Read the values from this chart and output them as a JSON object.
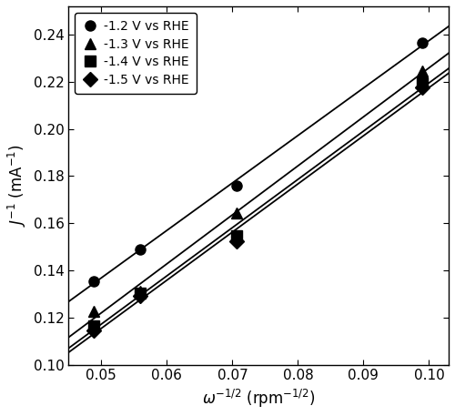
{
  "series": [
    {
      "label": "-1.2 V vs RHE",
      "marker": "o",
      "x": [
        0.0488,
        0.0559,
        0.0707,
        0.099
      ],
      "y": [
        0.1355,
        0.149,
        0.176,
        0.2365
      ]
    },
    {
      "label": "-1.3 V vs RHE",
      "marker": "^",
      "x": [
        0.0488,
        0.0559,
        0.0707,
        0.099
      ],
      "y": [
        0.1225,
        0.131,
        0.1645,
        0.2245
      ]
    },
    {
      "label": "-1.4 V vs RHE",
      "marker": "s",
      "x": [
        0.0488,
        0.0559,
        0.0707,
        0.099
      ],
      "y": [
        0.1165,
        0.1305,
        0.1545,
        0.2195
      ]
    },
    {
      "label": "-1.5 V vs RHE",
      "marker": "D",
      "x": [
        0.0488,
        0.0559,
        0.0707,
        0.099
      ],
      "y": [
        0.1145,
        0.129,
        0.1525,
        0.2175
      ]
    }
  ],
  "xlabel": "$\\omega^{-1/2}$ (rpm$^{-1/2}$)",
  "ylabel": "$J^{-1}$ (mA$^{-1}$)",
  "xlim": [
    0.045,
    0.103
  ],
  "ylim": [
    0.1,
    0.252
  ],
  "xticks": [
    0.05,
    0.06,
    0.07,
    0.08,
    0.09,
    0.1
  ],
  "yticks": [
    0.1,
    0.12,
    0.14,
    0.16,
    0.18,
    0.2,
    0.22,
    0.24
  ],
  "line_color": "#000000",
  "marker_color": "#000000",
  "markersize": 8,
  "linewidth": 1.3,
  "background_color": "#ffffff",
  "legend_loc": "upper left",
  "figsize": [
    5.0,
    4.57
  ],
  "dpi": 100
}
